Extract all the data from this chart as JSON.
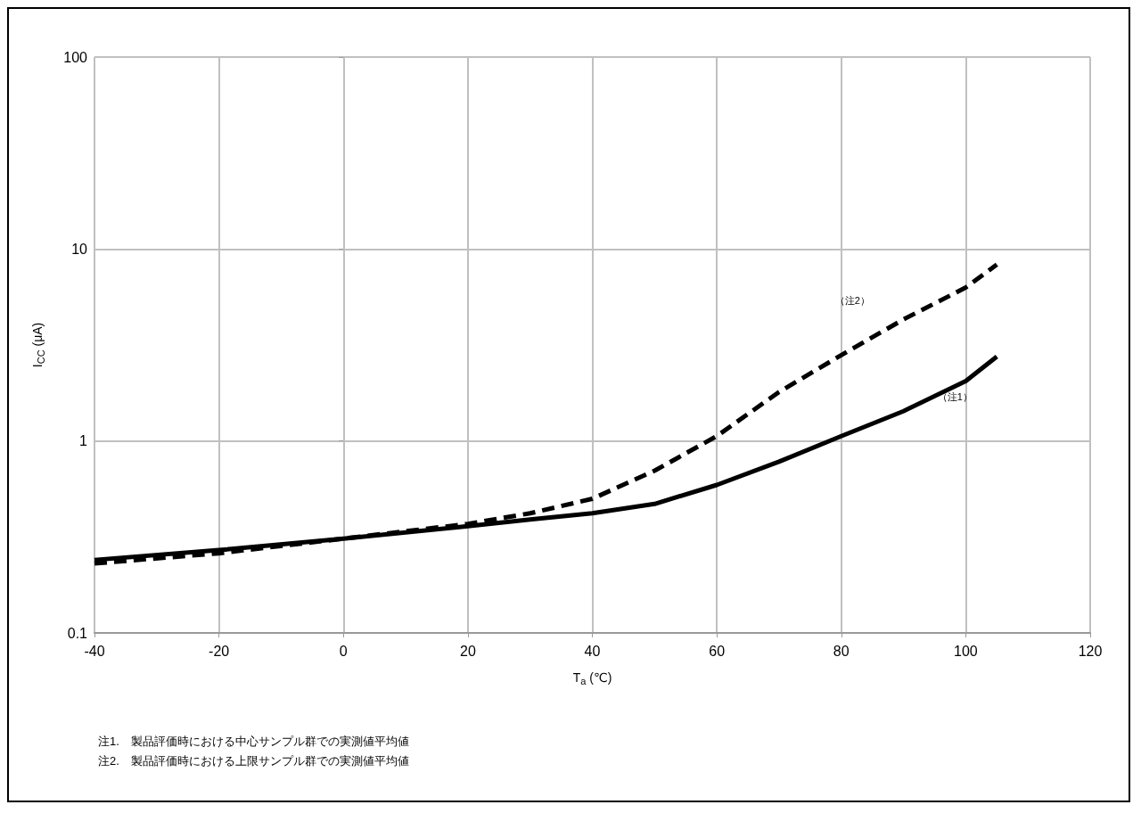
{
  "chart_data": {
    "type": "line",
    "xlabel": "T$_{a}$ (℃)",
    "ylabel": "I$_{CC}$ (μA)",
    "series": [
      {
        "name": "（注1）",
        "color": "#000000",
        "line_style": "solid",
        "x": [
          -40,
          -20,
          0,
          20,
          30,
          40,
          50,
          60,
          70,
          80,
          90,
          100,
          105
        ],
        "values": [
          0.24,
          0.27,
          0.31,
          0.36,
          0.39,
          0.42,
          0.47,
          0.59,
          0.78,
          1.06,
          1.43,
          2.05,
          2.75
        ]
      },
      {
        "name": "（注2）",
        "color": "#000000",
        "line_style": "dashed",
        "x": [
          -40,
          -20,
          0,
          20,
          30,
          40,
          50,
          60,
          70,
          80,
          90,
          100,
          105
        ],
        "values": [
          0.23,
          0.26,
          0.31,
          0.37,
          0.42,
          0.5,
          0.7,
          1.06,
          1.8,
          2.8,
          4.3,
          6.3,
          8.3
        ]
      }
    ],
    "xlim": [
      -40,
      120
    ],
    "xticks": [
      -40,
      -20,
      0,
      20,
      40,
      60,
      80,
      100,
      120
    ],
    "ylim": [
      0.1,
      100
    ],
    "yticks": [
      0.1,
      1,
      10,
      100
    ],
    "log": "y",
    "grid": true,
    "marker": "none",
    "annotations": [
      "注1.　製品評価時における中心サンプル群での実測値平均値",
      "注2.　製品評価時における上限サンプル群での実測値平均値"
    ]
  }
}
